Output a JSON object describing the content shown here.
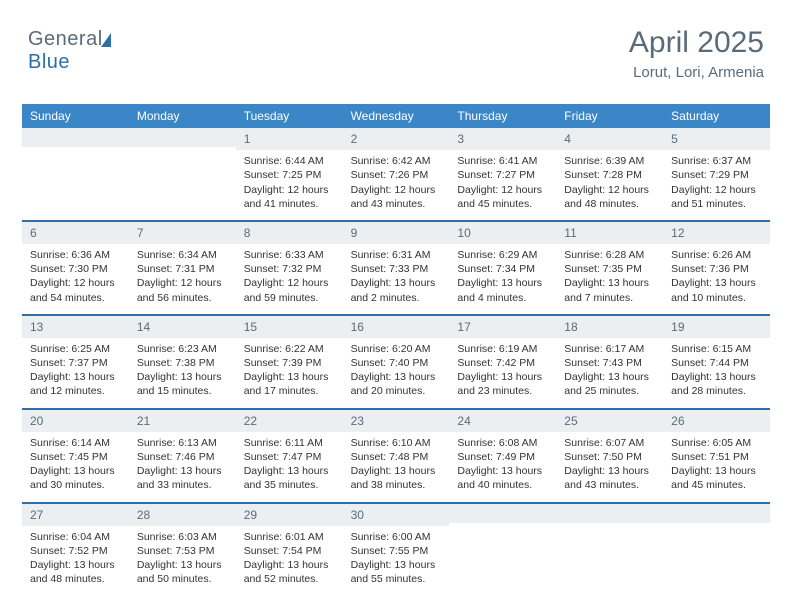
{
  "logo": {
    "text_general": "General",
    "text_blue": "Blue"
  },
  "title": "April 2025",
  "location": "Lorut, Lori, Armenia",
  "colors": {
    "header_bg": "#3b86c7",
    "header_text": "#ffffff",
    "daynum_bg": "#eceff1",
    "daynum_text": "#5a6b7a",
    "body_text": "#333333",
    "week_sep": "#2f6fa8",
    "title_text": "#5a6b7a"
  },
  "day_names": [
    "Sunday",
    "Monday",
    "Tuesday",
    "Wednesday",
    "Thursday",
    "Friday",
    "Saturday"
  ],
  "weeks": [
    [
      null,
      null,
      {
        "n": "1",
        "sr": "6:44 AM",
        "ss": "7:25 PM",
        "dl": "12 hours and 41 minutes."
      },
      {
        "n": "2",
        "sr": "6:42 AM",
        "ss": "7:26 PM",
        "dl": "12 hours and 43 minutes."
      },
      {
        "n": "3",
        "sr": "6:41 AM",
        "ss": "7:27 PM",
        "dl": "12 hours and 45 minutes."
      },
      {
        "n": "4",
        "sr": "6:39 AM",
        "ss": "7:28 PM",
        "dl": "12 hours and 48 minutes."
      },
      {
        "n": "5",
        "sr": "6:37 AM",
        "ss": "7:29 PM",
        "dl": "12 hours and 51 minutes."
      }
    ],
    [
      {
        "n": "6",
        "sr": "6:36 AM",
        "ss": "7:30 PM",
        "dl": "12 hours and 54 minutes."
      },
      {
        "n": "7",
        "sr": "6:34 AM",
        "ss": "7:31 PM",
        "dl": "12 hours and 56 minutes."
      },
      {
        "n": "8",
        "sr": "6:33 AM",
        "ss": "7:32 PM",
        "dl": "12 hours and 59 minutes."
      },
      {
        "n": "9",
        "sr": "6:31 AM",
        "ss": "7:33 PM",
        "dl": "13 hours and 2 minutes."
      },
      {
        "n": "10",
        "sr": "6:29 AM",
        "ss": "7:34 PM",
        "dl": "13 hours and 4 minutes."
      },
      {
        "n": "11",
        "sr": "6:28 AM",
        "ss": "7:35 PM",
        "dl": "13 hours and 7 minutes."
      },
      {
        "n": "12",
        "sr": "6:26 AM",
        "ss": "7:36 PM",
        "dl": "13 hours and 10 minutes."
      }
    ],
    [
      {
        "n": "13",
        "sr": "6:25 AM",
        "ss": "7:37 PM",
        "dl": "13 hours and 12 minutes."
      },
      {
        "n": "14",
        "sr": "6:23 AM",
        "ss": "7:38 PM",
        "dl": "13 hours and 15 minutes."
      },
      {
        "n": "15",
        "sr": "6:22 AM",
        "ss": "7:39 PM",
        "dl": "13 hours and 17 minutes."
      },
      {
        "n": "16",
        "sr": "6:20 AM",
        "ss": "7:40 PM",
        "dl": "13 hours and 20 minutes."
      },
      {
        "n": "17",
        "sr": "6:19 AM",
        "ss": "7:42 PM",
        "dl": "13 hours and 23 minutes."
      },
      {
        "n": "18",
        "sr": "6:17 AM",
        "ss": "7:43 PM",
        "dl": "13 hours and 25 minutes."
      },
      {
        "n": "19",
        "sr": "6:15 AM",
        "ss": "7:44 PM",
        "dl": "13 hours and 28 minutes."
      }
    ],
    [
      {
        "n": "20",
        "sr": "6:14 AM",
        "ss": "7:45 PM",
        "dl": "13 hours and 30 minutes."
      },
      {
        "n": "21",
        "sr": "6:13 AM",
        "ss": "7:46 PM",
        "dl": "13 hours and 33 minutes."
      },
      {
        "n": "22",
        "sr": "6:11 AM",
        "ss": "7:47 PM",
        "dl": "13 hours and 35 minutes."
      },
      {
        "n": "23",
        "sr": "6:10 AM",
        "ss": "7:48 PM",
        "dl": "13 hours and 38 minutes."
      },
      {
        "n": "24",
        "sr": "6:08 AM",
        "ss": "7:49 PM",
        "dl": "13 hours and 40 minutes."
      },
      {
        "n": "25",
        "sr": "6:07 AM",
        "ss": "7:50 PM",
        "dl": "13 hours and 43 minutes."
      },
      {
        "n": "26",
        "sr": "6:05 AM",
        "ss": "7:51 PM",
        "dl": "13 hours and 45 minutes."
      }
    ],
    [
      {
        "n": "27",
        "sr": "6:04 AM",
        "ss": "7:52 PM",
        "dl": "13 hours and 48 minutes."
      },
      {
        "n": "28",
        "sr": "6:03 AM",
        "ss": "7:53 PM",
        "dl": "13 hours and 50 minutes."
      },
      {
        "n": "29",
        "sr": "6:01 AM",
        "ss": "7:54 PM",
        "dl": "13 hours and 52 minutes."
      },
      {
        "n": "30",
        "sr": "6:00 AM",
        "ss": "7:55 PM",
        "dl": "13 hours and 55 minutes."
      },
      null,
      null,
      null
    ]
  ],
  "labels": {
    "sunrise": "Sunrise:",
    "sunset": "Sunset:",
    "daylight": "Daylight:"
  }
}
